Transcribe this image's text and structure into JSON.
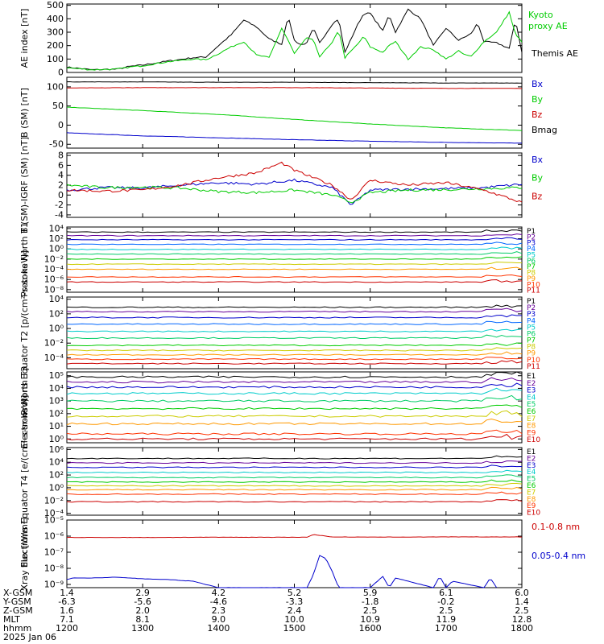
{
  "chart_data": [
    {
      "type": "line",
      "ylabel": "AE index [nT]",
      "yticks": [
        "0",
        "100",
        "200",
        "300",
        "400",
        "500"
      ],
      "ylim": [
        0,
        510
      ],
      "series": [
        {
          "name": "Themis AE",
          "color": "#000000",
          "x": [
            1200,
            1220,
            1240,
            1250,
            1260,
            1280,
            1300,
            1320,
            1340,
            1350,
            1400,
            1410,
            1420,
            1430,
            1440,
            1450,
            1455,
            1500,
            1505,
            1510,
            1515,
            1520,
            1530,
            1535,
            1540,
            1550,
            1555,
            1600,
            1610,
            1615,
            1620,
            1630,
            1640,
            1650,
            1700,
            1710,
            1720,
            1725,
            1730,
            1740,
            1750,
            1755,
            1800
          ],
          "y": [
            40,
            20,
            25,
            45,
            55,
            85,
            95,
            85,
            110,
            115,
            200,
            280,
            390,
            340,
            250,
            210,
            420,
            240,
            205,
            220,
            330,
            220,
            360,
            400,
            150,
            355,
            440,
            440,
            310,
            430,
            300,
            470,
            400,
            200,
            330,
            240,
            290,
            370,
            230,
            220,
            180,
            390,
            150
          ]
        },
        {
          "name": "Kyoto proxy AE",
          "color": "#00cc00",
          "x": [
            1200,
            1220,
            1240,
            1250,
            1260,
            1280,
            1300,
            1320,
            1340,
            1350,
            1400,
            1410,
            1420,
            1430,
            1440,
            1450,
            1455,
            1500,
            1510,
            1515,
            1520,
            1530,
            1535,
            1540,
            1550,
            1555,
            1600,
            1610,
            1615,
            1620,
            1630,
            1640,
            1650,
            1700,
            1710,
            1715,
            1720,
            1730,
            1740,
            1750,
            1755,
            1800
          ],
          "y": [
            35,
            20,
            25,
            40,
            50,
            80,
            90,
            80,
            100,
            95,
            140,
            190,
            230,
            130,
            110,
            330,
            240,
            140,
            260,
            240,
            120,
            220,
            320,
            110,
            210,
            270,
            190,
            150,
            200,
            230,
            100,
            190,
            170,
            100,
            160,
            130,
            120,
            230,
            300,
            450,
            280,
            230
          ]
        }
      ],
      "legend_labels": [
        "Kyoto proxy AE",
        "Themis AE"
      ]
    },
    {
      "type": "line",
      "ylabel": "B (SM) [nT]",
      "yticks": [
        "-50",
        "0",
        "50",
        "100"
      ],
      "ylim": [
        -60,
        125
      ],
      "series": [
        {
          "name": "Bx",
          "color": "#0000cc",
          "x": [
            1200,
            1300,
            1400,
            1500,
            1600,
            1700,
            1800
          ],
          "y": [
            -20,
            -28,
            -33,
            -38,
            -42,
            -45,
            -47
          ]
        },
        {
          "name": "By",
          "color": "#00cc00",
          "x": [
            1200,
            1300,
            1400,
            1500,
            1600,
            1700,
            1800
          ],
          "y": [
            47,
            38,
            28,
            15,
            3,
            -7,
            -14
          ]
        },
        {
          "name": "Bz",
          "color": "#cc0000",
          "x": [
            1200,
            1300,
            1400,
            1500,
            1600,
            1700,
            1800
          ],
          "y": [
            97,
            98,
            98,
            98,
            97,
            96,
            96
          ]
        },
        {
          "name": "Bmag",
          "color": "#000000",
          "x": [
            1200,
            1300,
            1400,
            1500,
            1600,
            1700,
            1800
          ],
          "y": [
            113,
            113,
            112,
            112,
            111,
            110,
            110
          ]
        }
      ]
    },
    {
      "type": "line",
      "ylabel": "B (SM)-IGRF (SM) [nT]",
      "yticks": [
        "-4",
        "-2",
        "0",
        "2",
        "4",
        "6",
        "8"
      ],
      "ylim": [
        -4.5,
        8.5
      ],
      "series": [
        {
          "name": "Bx",
          "color": "#0000cc",
          "x": [
            1200,
            1230,
            1300,
            1330,
            1400,
            1430,
            1500,
            1530,
            1545,
            1600,
            1630,
            1700,
            1730,
            1800
          ],
          "y": [
            1.0,
            1.5,
            1.4,
            2.0,
            2.5,
            2.2,
            3.0,
            1.5,
            -2.0,
            1.0,
            1.2,
            1.3,
            1.5,
            2.2
          ]
        },
        {
          "name": "By",
          "color": "#00cc00",
          "x": [
            1200,
            1230,
            1300,
            1330,
            1400,
            1430,
            1500,
            1530,
            1545,
            1600,
            1630,
            1700,
            1730,
            1800
          ],
          "y": [
            2.0,
            1.5,
            1.6,
            1.4,
            0.7,
            0.5,
            1.0,
            0.0,
            -1.5,
            0.5,
            1.0,
            1.1,
            1.3,
            1.5
          ]
        },
        {
          "name": "Bz",
          "color": "#cc0000",
          "x": [
            1200,
            1230,
            1300,
            1330,
            1400,
            1430,
            1450,
            1500,
            1530,
            1545,
            1600,
            1630,
            1700,
            1730,
            1800
          ],
          "y": [
            1.0,
            0.8,
            1.0,
            2.0,
            3.5,
            4.5,
            6.5,
            5.0,
            2.0,
            -1.0,
            3.0,
            2.0,
            2.5,
            1.0,
            -1.5
          ]
        }
      ]
    },
    {
      "type": "line",
      "ylabel": "Protons North T1",
      "yticks": [
        "10⁻⁸",
        "10⁻⁶",
        "10⁻⁴",
        "10⁻²",
        "10⁰",
        "10²",
        "10⁴"
      ],
      "ylim": [
        -8.5,
        4.3
      ],
      "log": true,
      "channel_labels": [
        "P1",
        "P2",
        "P3",
        "P4",
        "P5",
        "P6",
        "P7",
        "P8",
        "P9",
        "P10",
        "P11"
      ],
      "channel_colors": [
        "#000000",
        "#660099",
        "#0000cc",
        "#0066ff",
        "#00cccc",
        "#00cc66",
        "#00cc00",
        "#cccc00",
        "#ff9900",
        "#ff3300",
        "#cc0000"
      ],
      "levels": [
        3.3,
        2.6,
        1.8,
        0.9,
        -0.1,
        -1.0,
        -2.0,
        -3.0,
        -4.0,
        -5.5,
        -6.5
      ]
    },
    {
      "type": "line",
      "ylabel": "Protons Equator T2 [p/(cm²-s-sr-keV)]",
      "yticks": [
        "10⁻⁴",
        "10⁻²",
        "10⁰",
        "10²",
        "10⁴"
      ],
      "ylim": [
        -5.5,
        4.3
      ],
      "log": true,
      "channel_labels": [
        "P1",
        "P2",
        "P3",
        "P4",
        "P5",
        "P6",
        "P7",
        "P8",
        "P9",
        "P10",
        "P11"
      ],
      "channel_colors": [
        "#000000",
        "#660099",
        "#0000cc",
        "#0066ff",
        "#00cccc",
        "#00cc66",
        "#00cc00",
        "#cccc00",
        "#ff9900",
        "#ff3300",
        "#cc0000"
      ],
      "levels": [
        2.9,
        2.3,
        1.5,
        0.6,
        -0.4,
        -1.3,
        -2.3,
        -3.0,
        -3.6,
        -4.2,
        -4.8
      ]
    },
    {
      "type": "line",
      "ylabel": "Electrons North T3",
      "yticks": [
        "10⁰",
        "10¹",
        "10²",
        "10³",
        "10⁴",
        "10⁵"
      ],
      "ylim": [
        -0.3,
        5.3
      ],
      "log": true,
      "channel_labels": [
        "E1",
        "E2",
        "E3",
        "E4",
        "E5",
        "E6",
        "E7",
        "E8",
        "E9",
        "E10"
      ],
      "channel_colors": [
        "#000000",
        "#660099",
        "#0000cc",
        "#00cccc",
        "#00cc66",
        "#00cc00",
        "#cccc00",
        "#ff9900",
        "#ff3300",
        "#cc0000"
      ],
      "levels": [
        4.9,
        4.5,
        4.1,
        3.6,
        3.0,
        2.4,
        1.8,
        1.2,
        0.4,
        0.0
      ]
    },
    {
      "type": "line",
      "ylabel": "Electrons Equator T4 [e/(cm²-s-sr-keV)]",
      "yticks": [
        "10⁻⁴",
        "10⁻²",
        "10⁰",
        "10²",
        "10⁴",
        "10⁶"
      ],
      "ylim": [
        -4.3,
        6.3
      ],
      "log": true,
      "channel_labels": [
        "E1",
        "E2",
        "E3",
        "E4",
        "E5",
        "E6",
        "E7",
        "E8",
        "E9",
        "E10"
      ],
      "channel_colors": [
        "#000000",
        "#660099",
        "#0000cc",
        "#00cccc",
        "#00cc66",
        "#00cc00",
        "#cccc00",
        "#ff9900",
        "#ff3300",
        "#cc0000"
      ],
      "levels": [
        4.6,
        3.9,
        3.2,
        2.4,
        1.6,
        0.9,
        0.3,
        -0.3,
        -1.0,
        -2.2
      ]
    },
    {
      "type": "line",
      "ylabel": "Xray flux [W/m²]",
      "yticks": [
        "10⁻⁹",
        "10⁻⁸",
        "10⁻⁷",
        "10⁻⁶",
        "10⁻⁵"
      ],
      "ylim": [
        -9.2,
        -5.0
      ],
      "log": true,
      "series": [
        {
          "name": "0.1-0.8 nm",
          "color": "#cc0000",
          "x": [
            1200,
            1300,
            1400,
            1500,
            1510,
            1515,
            1520,
            1530,
            1600,
            1700,
            1800
          ],
          "y": [
            -6.08,
            -6.08,
            -6.07,
            -6.07,
            -6.07,
            -5.9,
            -5.95,
            -6.05,
            -6.06,
            -6.05,
            -6.05
          ]
        },
        {
          "name": "0.05-0.4 nm",
          "color": "#0000cc",
          "x": [
            1200,
            1205,
            1220,
            1240,
            1300,
            1320,
            1340,
            1350,
            1400,
            1510,
            1515,
            1520,
            1525,
            1530,
            1535,
            1600,
            1610,
            1615,
            1620,
            1650,
            1655,
            1700,
            1705,
            1730,
            1735,
            1740
          ],
          "y": [
            -8.7,
            -8.6,
            -8.6,
            -8.55,
            -8.65,
            -8.7,
            -8.8,
            -9.0,
            -9.2,
            -9.2,
            -8.4,
            -7.2,
            -7.4,
            -8.2,
            -9.2,
            -9.2,
            -8.5,
            -9.2,
            -8.6,
            -9.2,
            -8.5,
            -9.2,
            -8.8,
            -9.2,
            -8.6,
            -9.2
          ]
        }
      ]
    }
  ],
  "orbit_table": {
    "row_labels": [
      "X-GSM",
      "Y-GSM",
      "Z-GSM",
      "MLT",
      "hhmm",
      "2025 Jan 06"
    ],
    "columns": [
      {
        "values": [
          "1.4",
          "-6.3",
          "1.6",
          "7.1",
          "1200"
        ]
      },
      {
        "values": [
          "2.9",
          "-5.6",
          "2.0",
          "8.1",
          "1300"
        ]
      },
      {
        "values": [
          "4.2",
          "-4.6",
          "2.3",
          "9.0",
          "1400"
        ]
      },
      {
        "values": [
          "5.2",
          "-3.3",
          "2.4",
          "10.0",
          "1500"
        ]
      },
      {
        "values": [
          "5.9",
          "-1.8",
          "2.5",
          "10.9",
          "1600"
        ]
      },
      {
        "values": [
          "6.1",
          "-0.2",
          "2.5",
          "11.9",
          "1700"
        ]
      },
      {
        "values": [
          "6.0",
          "1.4",
          "2.5",
          "12.8",
          "1800"
        ]
      }
    ]
  }
}
